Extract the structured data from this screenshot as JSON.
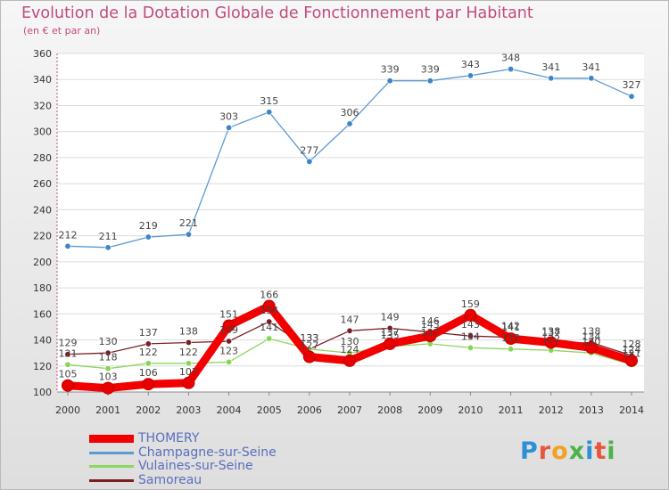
{
  "header": {
    "title": "Evolution de la Dotation Globale de Fonctionnement par Habitant",
    "subtitle": "(en € et par an)"
  },
  "logo": {
    "text": "Proxiti",
    "letter_colors": [
      "#2d8fd6",
      "#e8553b",
      "#f2a121",
      "#4bb349",
      "#2d8fd6",
      "#e8553b",
      "#4bb349"
    ]
  },
  "chart_data": {
    "type": "line",
    "x": [
      2000,
      2001,
      2002,
      2003,
      2004,
      2005,
      2006,
      2007,
      2008,
      2009,
      2010,
      2011,
      2012,
      2013,
      2014
    ],
    "ylim": [
      100,
      360
    ],
    "yticks": [
      100,
      120,
      140,
      160,
      180,
      200,
      220,
      240,
      260,
      280,
      300,
      320,
      340,
      360
    ],
    "grid": "horizontal",
    "legend_position": "bottom",
    "series": [
      {
        "name": "THOMERY",
        "color": "#f20000",
        "values": [
          105,
          103,
          106,
          107,
          151,
          166,
          127,
          124,
          137,
          143,
          159,
          141,
          138,
          134,
          124
        ]
      },
      {
        "name": "Champagne-sur-Seine",
        "color": "#5b9ad2",
        "values": [
          212,
          211,
          219,
          221,
          303,
          315,
          277,
          306,
          339,
          339,
          343,
          348,
          341,
          341,
          327
        ]
      },
      {
        "name": "Vulaines-sur-Seine",
        "color": "#8dd65f",
        "values": [
          121,
          118,
          122,
          122,
          123,
          141,
          133,
          130,
          135,
          137,
          134,
          133,
          132,
          130,
          121
        ]
      },
      {
        "name": "Samoreau",
        "color": "#7a1f26",
        "values": [
          129,
          130,
          137,
          138,
          139,
          154,
          133,
          147,
          149,
          146,
          143,
          142,
          137,
          138,
          128
        ]
      }
    ]
  }
}
